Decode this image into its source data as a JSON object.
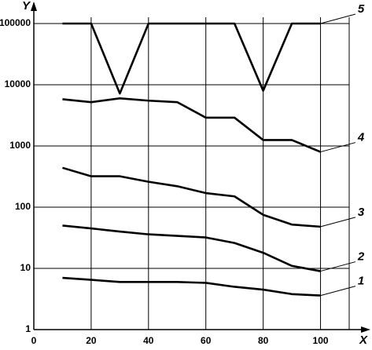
{
  "chart_data": {
    "type": "line",
    "x_label": "X",
    "y_label": "Y",
    "x": [
      10,
      20,
      30,
      40,
      50,
      60,
      70,
      80,
      90,
      100
    ],
    "series": [
      {
        "name": "1",
        "color": "#000000",
        "values": [
          7,
          6.5,
          6,
          6,
          6,
          5.8,
          5,
          4.5,
          3.8,
          3.6
        ]
      },
      {
        "name": "2",
        "color": "#000000",
        "values": [
          50,
          45,
          40,
          36,
          34,
          32,
          26,
          18,
          11,
          9
        ]
      },
      {
        "name": "3",
        "color": "#000000",
        "values": [
          440,
          320,
          320,
          260,
          220,
          170,
          150,
          75,
          52,
          48
        ]
      },
      {
        "name": "4",
        "color": "#000000",
        "values": [
          5800,
          5200,
          6000,
          5500,
          5200,
          2900,
          2900,
          1250,
          1250,
          800
        ]
      },
      {
        "name": "5",
        "color": "#000000",
        "values": [
          100000,
          100000,
          7200,
          100000,
          100000,
          100000,
          100000,
          8000,
          100000,
          100000
        ]
      }
    ],
    "xlim": [
      0,
      110
    ],
    "xticks": [
      0,
      20,
      40,
      60,
      80,
      100
    ],
    "ylim": [
      1,
      100000
    ],
    "yticks": [
      1,
      10,
      100,
      1000,
      10000,
      100000
    ],
    "log_y": true,
    "grid": true
  }
}
